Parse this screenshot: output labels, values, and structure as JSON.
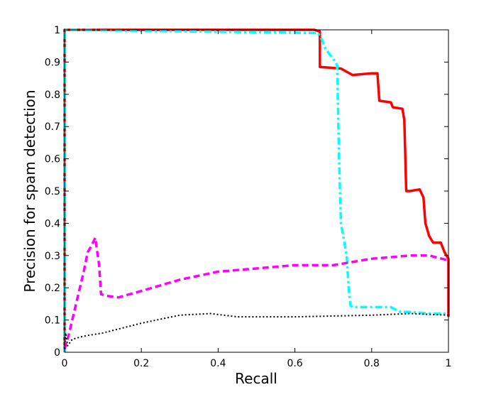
{
  "chart_data": {
    "type": "line",
    "title": "",
    "xlabel": "Recall",
    "ylabel": "Precision for spam detection",
    "xlim": [
      0,
      1
    ],
    "ylim": [
      0,
      1
    ],
    "xticks": [
      0,
      0.2,
      0.4,
      0.6,
      0.8,
      1
    ],
    "yticks": [
      0,
      0.1,
      0.2,
      0.3,
      0.4,
      0.5,
      0.6,
      0.7,
      0.8,
      0.9,
      1
    ],
    "xtick_labels": [
      "0",
      "0.2",
      "0.4",
      "0.6",
      "0.8",
      "1"
    ],
    "ytick_labels": [
      "0",
      "0.1",
      "0.2",
      "0.3",
      "0.4",
      "0.5",
      "0.6",
      "0.7",
      "0.8",
      "0.9",
      "1"
    ],
    "grid": false,
    "series": [
      {
        "color": "#ff0000",
        "style": "solid",
        "points": [
          [
            0.0,
            0.0
          ],
          [
            0.0,
            1.0
          ],
          [
            0.65,
            1.0
          ],
          [
            0.665,
            0.995
          ],
          [
            0.665,
            0.885
          ],
          [
            0.72,
            0.88
          ],
          [
            0.75,
            0.86
          ],
          [
            0.8,
            0.865
          ],
          [
            0.815,
            0.865
          ],
          [
            0.82,
            0.78
          ],
          [
            0.85,
            0.775
          ],
          [
            0.855,
            0.76
          ],
          [
            0.88,
            0.755
          ],
          [
            0.885,
            0.72
          ],
          [
            0.89,
            0.5
          ],
          [
            0.9,
            0.5
          ],
          [
            0.925,
            0.505
          ],
          [
            0.935,
            0.48
          ],
          [
            0.94,
            0.4
          ],
          [
            0.95,
            0.36
          ],
          [
            0.96,
            0.34
          ],
          [
            0.98,
            0.34
          ],
          [
            0.99,
            0.31
          ],
          [
            1.0,
            0.29
          ],
          [
            1.0,
            0.11
          ]
        ]
      },
      {
        "color": "#00ffff",
        "style": "dashdot",
        "points": [
          [
            0.0,
            0.0
          ],
          [
            0.0,
            1.0
          ],
          [
            0.66,
            0.99
          ],
          [
            0.67,
            0.97
          ],
          [
            0.68,
            0.94
          ],
          [
            0.7,
            0.91
          ],
          [
            0.71,
            0.89
          ],
          [
            0.715,
            0.6
          ],
          [
            0.72,
            0.4
          ],
          [
            0.735,
            0.3
          ],
          [
            0.74,
            0.2
          ],
          [
            0.745,
            0.145
          ],
          [
            0.75,
            0.14
          ],
          [
            0.79,
            0.14
          ],
          [
            0.85,
            0.14
          ],
          [
            0.875,
            0.125
          ],
          [
            0.9,
            0.125
          ],
          [
            0.95,
            0.12
          ],
          [
            1.0,
            0.12
          ]
        ]
      },
      {
        "color": "#ff00ff",
        "style": "dashed",
        "points": [
          [
            0.0,
            0.01
          ],
          [
            0.01,
            0.05
          ],
          [
            0.03,
            0.15
          ],
          [
            0.05,
            0.25
          ],
          [
            0.06,
            0.31
          ],
          [
            0.07,
            0.33
          ],
          [
            0.08,
            0.355
          ],
          [
            0.09,
            0.27
          ],
          [
            0.095,
            0.18
          ],
          [
            0.11,
            0.175
          ],
          [
            0.14,
            0.17
          ],
          [
            0.2,
            0.19
          ],
          [
            0.3,
            0.225
          ],
          [
            0.4,
            0.25
          ],
          [
            0.5,
            0.26
          ],
          [
            0.6,
            0.27
          ],
          [
            0.7,
            0.27
          ],
          [
            0.8,
            0.29
          ],
          [
            0.9,
            0.3
          ],
          [
            0.95,
            0.3
          ],
          [
            1.0,
            0.285
          ]
        ]
      },
      {
        "color": "#000000",
        "style": "dotted",
        "points": [
          [
            0.0,
            0.01
          ],
          [
            0.003,
            0.06
          ],
          [
            0.008,
            0.02
          ],
          [
            0.02,
            0.04
          ],
          [
            0.05,
            0.05
          ],
          [
            0.1,
            0.06
          ],
          [
            0.2,
            0.09
          ],
          [
            0.3,
            0.115
          ],
          [
            0.38,
            0.12
          ],
          [
            0.45,
            0.11
          ],
          [
            0.6,
            0.11
          ],
          [
            0.8,
            0.115
          ],
          [
            0.9,
            0.12
          ],
          [
            1.0,
            0.115
          ]
        ]
      }
    ]
  }
}
